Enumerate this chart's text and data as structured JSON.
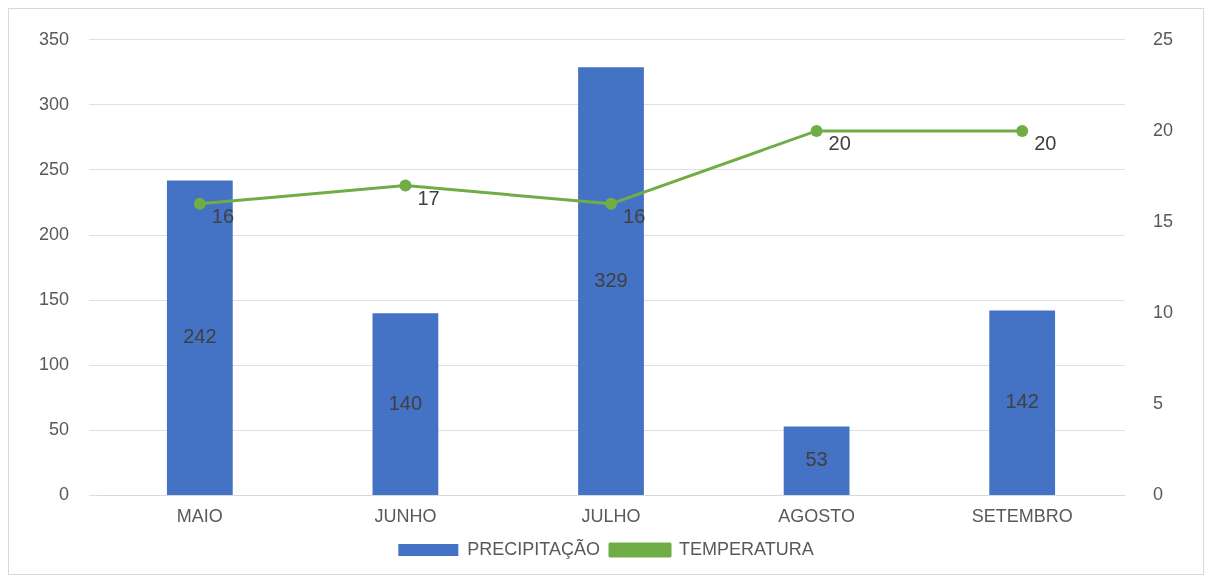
{
  "chart_data": {
    "type": "bar",
    "categories": [
      "MAIO",
      "JUNHO",
      "JULHO",
      "AGOSTO",
      "SETEMBRO"
    ],
    "series": [
      {
        "name": "PRECIPITAÇÃO",
        "color": "#4472c4",
        "values": [
          242,
          140,
          329,
          53,
          142
        ]
      },
      {
        "name": "TEMPERATURA",
        "type": "line",
        "axis": "y2",
        "color": "#70ad47",
        "values": [
          16,
          17,
          16,
          20,
          20
        ]
      }
    ],
    "ylim": [
      0,
      350
    ],
    "yticks": [
      0,
      50,
      100,
      150,
      200,
      250,
      300,
      350
    ],
    "y2lim": [
      0,
      25
    ],
    "y2ticks": [
      0,
      5,
      10,
      15,
      20,
      25
    ],
    "data_labels": true,
    "grid": "y",
    "legend": "bottom",
    "marker": "circle",
    "line_style": "solid"
  }
}
